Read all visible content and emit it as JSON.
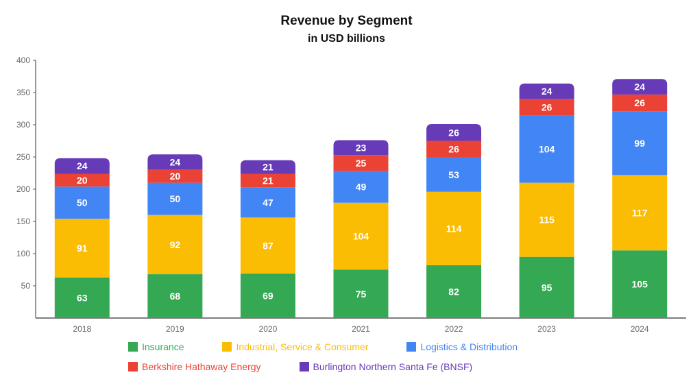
{
  "chart_data": {
    "type": "bar",
    "stacked": true,
    "title": "Revenue by Segment",
    "subtitle": "in USD billions",
    "categories": [
      "2018",
      "2019",
      "2020",
      "2021",
      "2022",
      "2023",
      "2024"
    ],
    "series": [
      {
        "name": "Insurance",
        "color": "#34a853",
        "values": [
          63,
          68,
          69,
          75,
          82,
          95,
          105
        ]
      },
      {
        "name": "Industrial, Service & Consumer",
        "color": "#fbbc04",
        "values": [
          91,
          92,
          87,
          104,
          114,
          115,
          117
        ]
      },
      {
        "name": "Logistics & Distribution",
        "color": "#4285f4",
        "values": [
          50,
          50,
          47,
          49,
          53,
          104,
          99
        ]
      },
      {
        "name": "Berkshire Hathaway Energy",
        "color": "#ea4335",
        "values": [
          20,
          20,
          21,
          25,
          26,
          26,
          26
        ]
      },
      {
        "name": "Burlington Northern Santa Fe (BNSF)",
        "color": "#673ab7",
        "values": [
          24,
          24,
          21,
          23,
          26,
          24,
          24
        ]
      }
    ],
    "ylim": [
      0,
      400
    ],
    "yticks": [
      50,
      100,
      150,
      200,
      250,
      300,
      350,
      400
    ],
    "grid": false,
    "legend_position": "bottom"
  }
}
